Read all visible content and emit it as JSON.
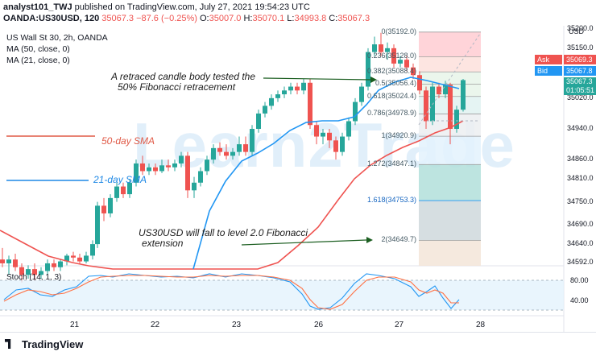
{
  "header": {
    "publisher": "analyst101_TWJ",
    "published_text": "published on TradingView.com, July 27, 2021 19:54:23 UTC",
    "symbol": "OANDA:US30USD, 120",
    "last": "35067.3",
    "change": "−87.6 (−0.25%)",
    "o_label": "O:",
    "o": "35007.0",
    "h_label": "H:",
    "h": "35070.1",
    "l_label": "L:",
    "l": "34993.8",
    "c_label": "C:",
    "c": "35067.3"
  },
  "legend": {
    "title": "US Wall St 30, 2h, OANDA",
    "ma50": "MA (50, close, 0)",
    "ma21": "MA (21, close, 0)"
  },
  "annotations": {
    "retrace": "A retraced candle body tested the",
    "retrace2": "50% Fibonacci retracement",
    "sma50": "50-day SMA",
    "sma21": "21-day SMA",
    "extension": "US30USD will fall to level 2.0 Fibonacci",
    "extension2": "extension"
  },
  "watermark": "Learn2Trade",
  "fib": [
    {
      "label": "0(35192.0)",
      "value": 35192.0
    },
    {
      "label": "0.236(35128.0)",
      "value": 35128.0
    },
    {
      "label": "0.382(35088.4)",
      "value": 35088.4
    },
    {
      "label": "0.5(35056.4)",
      "value": 35056.4
    },
    {
      "label": "0.618(35024.4)",
      "value": 35024.4
    },
    {
      "label": "0.786(34978.9)",
      "value": 34978.9
    },
    {
      "label": "1(34920.9)",
      "value": 34920.9
    },
    {
      "label": "1.272(34847.1)",
      "value": 34847.1
    },
    {
      "label": "1.618(34753.3)",
      "value": 34753.3
    },
    {
      "label": "2(34649.7)",
      "value": 34649.7
    }
  ],
  "price_axis": {
    "currency": "USD",
    "ticks": [
      "35200.0",
      "35150.0",
      "35020.0",
      "34940.0",
      "34860.0",
      "34810.0",
      "34750.0",
      "34690.0",
      "34640.0",
      "34592.0"
    ],
    "ask_label": "Ask",
    "ask": "35069.3",
    "bid_label": "Bid",
    "bid": "35067.8",
    "last": "35067.3",
    "countdown": "01:05:51"
  },
  "stoch": {
    "label": "Stoch (14, 1, 3)",
    "ticks": [
      "80.00",
      "40.00"
    ]
  },
  "time_axis": [
    "21",
    "22",
    "23",
    "26",
    "27",
    "28"
  ],
  "footer": {
    "logo": "TradingView"
  },
  "colors": {
    "up": "#26a69a",
    "down": "#ef5350",
    "ma50": "#ef5350",
    "ma21": "#2196f3",
    "annotation": "#1b5e20"
  }
}
